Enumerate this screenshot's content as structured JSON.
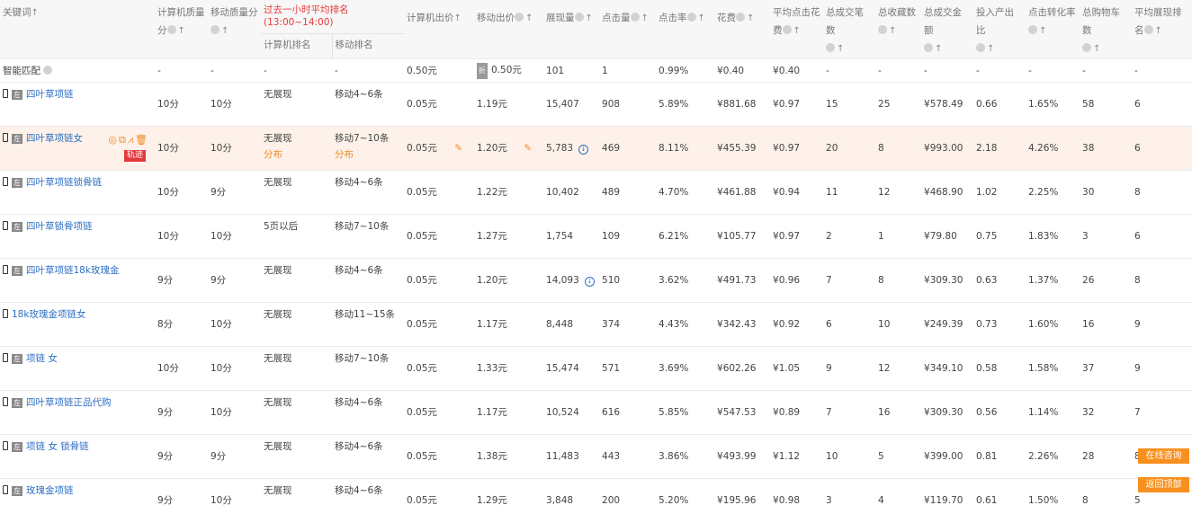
{
  "headers": {
    "keyword": "关键词",
    "pc_quality": "计算机质量分",
    "mobile_quality": "移动质量分",
    "rank_group": "过去一小时平均排名(13:00~14:00)",
    "pc_rank": "计算机排名",
    "mobile_rank": "移动排名",
    "pc_bid": "计算机出价",
    "mobile_bid": "移动出价",
    "impressions": "展现量",
    "clicks": "点击量",
    "ctr": "点击率",
    "cost": "花费",
    "cpc": "平均点击花费",
    "orders": "总成交笔数",
    "favorites": "总收藏数",
    "gmv": "总成交金额",
    "roi": "投入产出比",
    "cvr": "点击转化率",
    "cart": "总购物车数",
    "avg_rank": "平均展现排名"
  },
  "smart": {
    "name": "智能匹配",
    "pcq": "-",
    "mq": "-",
    "pcr": "-",
    "mr": "-",
    "pcbid": "0.50元",
    "discount": "折",
    "mbid": "0.50元",
    "imp": "101",
    "clk": "1",
    "ctr": "0.99%",
    "cost": "¥0.40",
    "cpc": "¥0.40",
    "ord": "-",
    "fav": "-",
    "gmv": "-",
    "roi": "-",
    "cvr": "-",
    "cart": "-",
    "rank": "-"
  },
  "row_badges": {
    "left": "左",
    "track": "轨迹"
  },
  "rows": [
    {
      "kw": "四叶草项链",
      "badge": true,
      "pcq": "10分",
      "mq": "10分",
      "pcr": "无展现",
      "mr": "移动4~6条",
      "pcbid": "0.05元",
      "mbid": "1.19元",
      "imp": "15,407",
      "clk": "908",
      "ctr": "5.89%",
      "cost": "¥881.68",
      "cpc": "¥0.97",
      "ord": "15",
      "fav": "25",
      "gmv": "¥578.49",
      "roi": "0.66",
      "cvr": "1.65%",
      "cart": "58",
      "rank": "6"
    },
    {
      "kw": "四叶草项链女",
      "badge": true,
      "hl": true,
      "pcq": "10分",
      "mq": "10分",
      "pcr": "无展现",
      "pcr2": "分布",
      "mr": "移动7~10条",
      "mr2": "分布",
      "pcbid": "0.05元",
      "mbid": "1.20元",
      "imp": "5,783",
      "info": true,
      "clk": "469",
      "ctr": "8.11%",
      "cost": "¥455.39",
      "cpc": "¥0.97",
      "ord": "20",
      "fav": "8",
      "gmv": "¥993.00",
      "roi": "2.18",
      "cvr": "4.26%",
      "cart": "38",
      "rank": "6"
    },
    {
      "kw": "四叶草项链锁骨链",
      "badge": true,
      "pcq": "10分",
      "mq": "9分",
      "pcr": "无展现",
      "mr": "移动4~6条",
      "pcbid": "0.05元",
      "mbid": "1.22元",
      "imp": "10,402",
      "clk": "489",
      "ctr": "4.70%",
      "cost": "¥461.88",
      "cpc": "¥0.94",
      "ord": "11",
      "fav": "12",
      "gmv": "¥468.90",
      "roi": "1.02",
      "cvr": "2.25%",
      "cart": "30",
      "rank": "8"
    },
    {
      "kw": "四叶草锁骨项链",
      "badge": true,
      "pcq": "10分",
      "mq": "10分",
      "pcr": "5页以后",
      "mr": "移动7~10条",
      "pcbid": "0.05元",
      "mbid": "1.27元",
      "imp": "1,754",
      "clk": "109",
      "ctr": "6.21%",
      "cost": "¥105.77",
      "cpc": "¥0.97",
      "ord": "2",
      "fav": "1",
      "gmv": "¥79.80",
      "roi": "0.75",
      "cvr": "1.83%",
      "cart": "3",
      "rank": "6"
    },
    {
      "kw": "四叶草项链18k玫瑰金",
      "badge": true,
      "pcq": "9分",
      "mq": "9分",
      "pcr": "无展现",
      "mr": "移动4~6条",
      "pcbid": "0.05元",
      "mbid": "1.20元",
      "imp": "14,093",
      "info": true,
      "clk": "510",
      "ctr": "3.62%",
      "cost": "¥491.73",
      "cpc": "¥0.96",
      "ord": "7",
      "fav": "8",
      "gmv": "¥309.30",
      "roi": "0.63",
      "cvr": "1.37%",
      "cart": "26",
      "rank": "8"
    },
    {
      "kw": "18k玫瑰金项链女",
      "badge": false,
      "pcq": "8分",
      "mq": "10分",
      "pcr": "无展现",
      "mr": "移动11~15条",
      "pcbid": "0.05元",
      "mbid": "1.17元",
      "imp": "8,448",
      "clk": "374",
      "ctr": "4.43%",
      "cost": "¥342.43",
      "cpc": "¥0.92",
      "ord": "6",
      "fav": "10",
      "gmv": "¥249.39",
      "roi": "0.73",
      "cvr": "1.60%",
      "cart": "16",
      "rank": "9"
    },
    {
      "kw": "项链 女",
      "badge": true,
      "pcq": "10分",
      "mq": "10分",
      "pcr": "无展现",
      "mr": "移动7~10条",
      "pcbid": "0.05元",
      "mbid": "1.33元",
      "imp": "15,474",
      "clk": "571",
      "ctr": "3.69%",
      "cost": "¥602.26",
      "cpc": "¥1.05",
      "ord": "9",
      "fav": "12",
      "gmv": "¥349.10",
      "roi": "0.58",
      "cvr": "1.58%",
      "cart": "37",
      "rank": "9"
    },
    {
      "kw": "四叶草项链正品代购",
      "badge": true,
      "pcq": "9分",
      "mq": "10分",
      "pcr": "无展现",
      "mr": "移动4~6条",
      "pcbid": "0.05元",
      "mbid": "1.17元",
      "imp": "10,524",
      "clk": "616",
      "ctr": "5.85%",
      "cost": "¥547.53",
      "cpc": "¥0.89",
      "ord": "7",
      "fav": "16",
      "gmv": "¥309.30",
      "roi": "0.56",
      "cvr": "1.14%",
      "cart": "32",
      "rank": "7"
    },
    {
      "kw": "项链 女 锁骨链",
      "badge": true,
      "pcq": "9分",
      "mq": "9分",
      "pcr": "无展现",
      "mr": "移动4~6条",
      "pcbid": "0.05元",
      "mbid": "1.38元",
      "imp": "11,483",
      "clk": "443",
      "ctr": "3.86%",
      "cost": "¥493.99",
      "cpc": "¥1.12",
      "ord": "10",
      "fav": "5",
      "gmv": "¥399.00",
      "roi": "0.81",
      "cvr": "2.26%",
      "cart": "28",
      "rank": "8"
    },
    {
      "kw": "玫瑰金项链",
      "badge": true,
      "pcq": "9分",
      "mq": "10分",
      "pcr": "无展现",
      "mr": "移动4~6条",
      "pcbid": "0.05元",
      "mbid": "1.29元",
      "imp": "3,848",
      "clk": "200",
      "ctr": "5.20%",
      "cost": "¥195.96",
      "cpc": "¥0.98",
      "ord": "3",
      "fav": "4",
      "gmv": "¥119.70",
      "roi": "0.61",
      "cvr": "1.50%",
      "cart": "8",
      "rank": "5"
    }
  ],
  "float_buttons": {
    "consult": "在线咨询",
    "back_top": "返回顶部"
  },
  "colors": {
    "accent": "#f7901e",
    "link": "#2e6fc4",
    "highlight_row": "#fdf1e9",
    "rank_header": "#e4393c"
  }
}
